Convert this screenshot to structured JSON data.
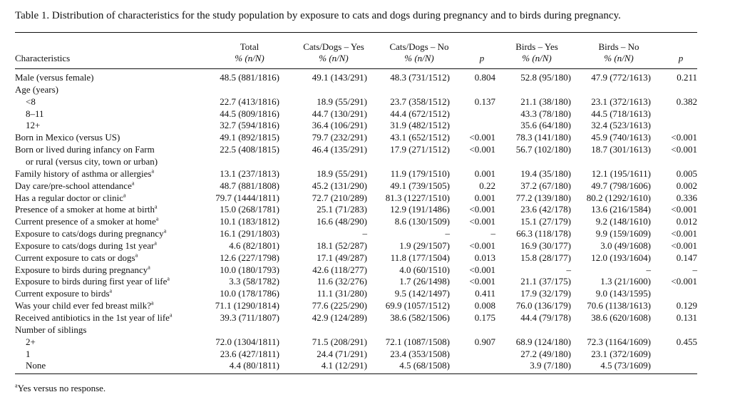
{
  "caption": "Table 1. Distribution of characteristics for the study population by exposure to cats and dogs during pregnancy and to birds during pregnancy.",
  "headers": {
    "characteristics": "Characteristics",
    "total": "Total",
    "cats_yes": "Cats/Dogs – Yes",
    "cats_no": "Cats/Dogs – No",
    "p1": "p",
    "birds_yes": "Birds – Yes",
    "birds_no": "Birds – No",
    "p2": "p",
    "sub": "% (n/N)"
  },
  "rows": [
    {
      "c": "Male (versus female)",
      "t": "48.5 (881/1816)",
      "cy": "49.1 (143/291)",
      "cn": "48.3 (731/1512)",
      "p1": "0.804",
      "by": "52.8 (95/180)",
      "bn": "47.9 (772/1613)",
      "p2": "0.211"
    },
    {
      "c": "Age (years)",
      "t": "",
      "cy": "",
      "cn": "",
      "p1": "",
      "by": "",
      "bn": "",
      "p2": ""
    },
    {
      "c": "<8",
      "indent": 1,
      "t": "22.7 (413/1816)",
      "cy": "18.9 (55/291)",
      "cn": "23.7 (358/1512)",
      "p1": "0.137",
      "by": "21.1 (38/180)",
      "bn": "23.1 (372/1613)",
      "p2": "0.382"
    },
    {
      "c": "8–11",
      "indent": 1,
      "t": "44.5 (809/1816)",
      "cy": "44.7 (130/291)",
      "cn": "44.4 (672/1512)",
      "p1": "",
      "by": "43.3 (78/180)",
      "bn": "44.5 (718/1613)",
      "p2": ""
    },
    {
      "c": "12+",
      "indent": 1,
      "t": "32.7 (594/1816)",
      "cy": "36.4 (106/291)",
      "cn": "31.9 (482/1512)",
      "p1": "",
      "by": "35.6 (64/180)",
      "bn": "32.4 (523/1613)",
      "p2": ""
    },
    {
      "c": "Born in Mexico (versus US)",
      "t": "49.1 (892/1815)",
      "cy": "79.7 (232/291)",
      "cn": "43.1 (652/1512)",
      "p1": "<0.001",
      "by": "78.3 (141/180)",
      "bn": "45.9 (740/1613)",
      "p2": "<0.001"
    },
    {
      "c": "Born or lived during infancy on Farm",
      "t": "22.5 (408/1815)",
      "cy": "46.4 (135/291)",
      "cn": "17.9 (271/1512)",
      "p1": "<0.001",
      "by": "56.7 (102/180)",
      "bn": "18.7 (301/1613)",
      "p2": "<0.001"
    },
    {
      "c": "or rural (versus city, town or urban)",
      "indent": 1,
      "t": "",
      "cy": "",
      "cn": "",
      "p1": "",
      "by": "",
      "bn": "",
      "p2": ""
    },
    {
      "c": "Family history of asthma or allergies",
      "sup": "a",
      "t": "13.1 (237/1813)",
      "cy": "18.9 (55/291)",
      "cn": "11.9 (179/1510)",
      "p1": "0.001",
      "by": "19.4 (35/180)",
      "bn": "12.1 (195/1611)",
      "p2": "0.005"
    },
    {
      "c": "Day care/pre-school attendance",
      "sup": "a",
      "t": "48.7 (881/1808)",
      "cy": "45.2 (131/290)",
      "cn": "49.1 (739/1505)",
      "p1": "0.22",
      "by": "37.2 (67/180)",
      "bn": "49.7 (798/1606)",
      "p2": "0.002"
    },
    {
      "c": "Has a regular doctor or clinic",
      "sup": "a",
      "t": "79.7 (1444/1811)",
      "cy": "72.7 (210/289)",
      "cn": "81.3 (1227/1510)",
      "p1": "0.001",
      "by": "77.2 (139/180)",
      "bn": "80.2 (1292/1610)",
      "p2": "0.336"
    },
    {
      "c": "Presence of a smoker at home at birth",
      "sup": "a",
      "t": "15.0 (268/1781)",
      "cy": "25.1 (71/283)",
      "cn": "12.9 (191/1486)",
      "p1": "<0.001",
      "by": "23.6 (42/178)",
      "bn": "13.6 (216/1584)",
      "p2": "<0.001"
    },
    {
      "c": "Current presence of a smoker at home",
      "sup": "a",
      "t": "10.1 (183/1812)",
      "cy": "16.6 (48/290)",
      "cn": "8.6 (130/1509)",
      "p1": "<0.001",
      "by": "15.1 (27/179)",
      "bn": "9.2 (148/1610)",
      "p2": "0.012"
    },
    {
      "c": "Exposure to cats/dogs during pregnancy",
      "sup": "a",
      "t": "16.1 (291/1803)",
      "cy": "–",
      "cn": "–",
      "p1": "–",
      "by": "66.3 (118/178)",
      "bn": "9.9 (159/1609)",
      "p2": "<0.001"
    },
    {
      "c": "Exposure to cats/dogs during 1st year",
      "sup": "a",
      "t": "4.6 (82/1801)",
      "cy": "18.1 (52/287)",
      "cn": "1.9 (29/1507)",
      "p1": "<0.001",
      "by": "16.9 (30/177)",
      "bn": "3.0 (49/1608)",
      "p2": "<0.001"
    },
    {
      "c": "Current exposure to cats or dogs",
      "sup": "a",
      "t": "12.6 (227/1798)",
      "cy": "17.1 (49/287)",
      "cn": "11.8 (177/1504)",
      "p1": "0.013",
      "by": "15.8 (28/177)",
      "bn": "12.0 (193/1604)",
      "p2": "0.147"
    },
    {
      "c": "Exposure to birds during pregnancy",
      "sup": "a",
      "t": "10.0 (180/1793)",
      "cy": "42.6 (118/277)",
      "cn": "4.0 (60/1510)",
      "p1": "<0.001",
      "by": "–",
      "bn": "–",
      "p2": "–"
    },
    {
      "c": "Exposure to birds during first year of life",
      "sup": "a",
      "t": "3.3 (58/1782)",
      "cy": "11.6 (32/276)",
      "cn": "1.7 (26/1498)",
      "p1": "<0.001",
      "by": "21.1 (37/175)",
      "bn": "1.3 (21/1600)",
      "p2": "<0.001"
    },
    {
      "c": "Current exposure to birds",
      "sup": "a",
      "t": "10.0 (178/1786)",
      "cy": "11.1 (31/280)",
      "cn": "9.5 (142/1497)",
      "p1": "0.411",
      "by": "17.9 (32/179)",
      "bn": "9.0 (143/1595)",
      "p2": ""
    },
    {
      "c": "Was your child ever fed breast milk?",
      "sup": "a",
      "t": "71.1 (1290/1814)",
      "cy": "77.6 (225/290)",
      "cn": "69.9 (1057/1512)",
      "p1": "0.008",
      "by": "76.0 (136/179)",
      "bn": "70.6 (1138/1613)",
      "p2": "0.129"
    },
    {
      "c": "Received antibiotics in the 1st year of life",
      "sup": "a",
      "t": "39.3 (711/1807)",
      "cy": "42.9 (124/289)",
      "cn": "38.6 (582/1506)",
      "p1": "0.175",
      "by": "44.4 (79/178)",
      "bn": "38.6 (620/1608)",
      "p2": "0.131"
    },
    {
      "c": "Number of siblings",
      "t": "",
      "cy": "",
      "cn": "",
      "p1": "",
      "by": "",
      "bn": "",
      "p2": ""
    },
    {
      "c": "2+",
      "indent": 1,
      "t": "72.0 (1304/1811)",
      "cy": "71.5 (208/291)",
      "cn": "72.1 (1087/1508)",
      "p1": "0.907",
      "by": "68.9 (124/180)",
      "bn": "72.3 (1164/1609)",
      "p2": "0.455"
    },
    {
      "c": "1",
      "indent": 1,
      "t": "23.6 (427/1811)",
      "cy": "24.4 (71/291)",
      "cn": "23.4 (353/1508)",
      "p1": "",
      "by": "27.2 (49/180)",
      "bn": "23.1 (372/1609)",
      "p2": ""
    },
    {
      "c": "None",
      "indent": 1,
      "t": "4.4 (80/1811)",
      "cy": "4.1 (12/291)",
      "cn": "4.5 (68/1508)",
      "p1": "",
      "by": "3.9 (7/180)",
      "bn": "4.5 (73/1609)",
      "p2": ""
    }
  ],
  "footnote": {
    "sup": "a",
    "text": "Yes versus no response."
  }
}
